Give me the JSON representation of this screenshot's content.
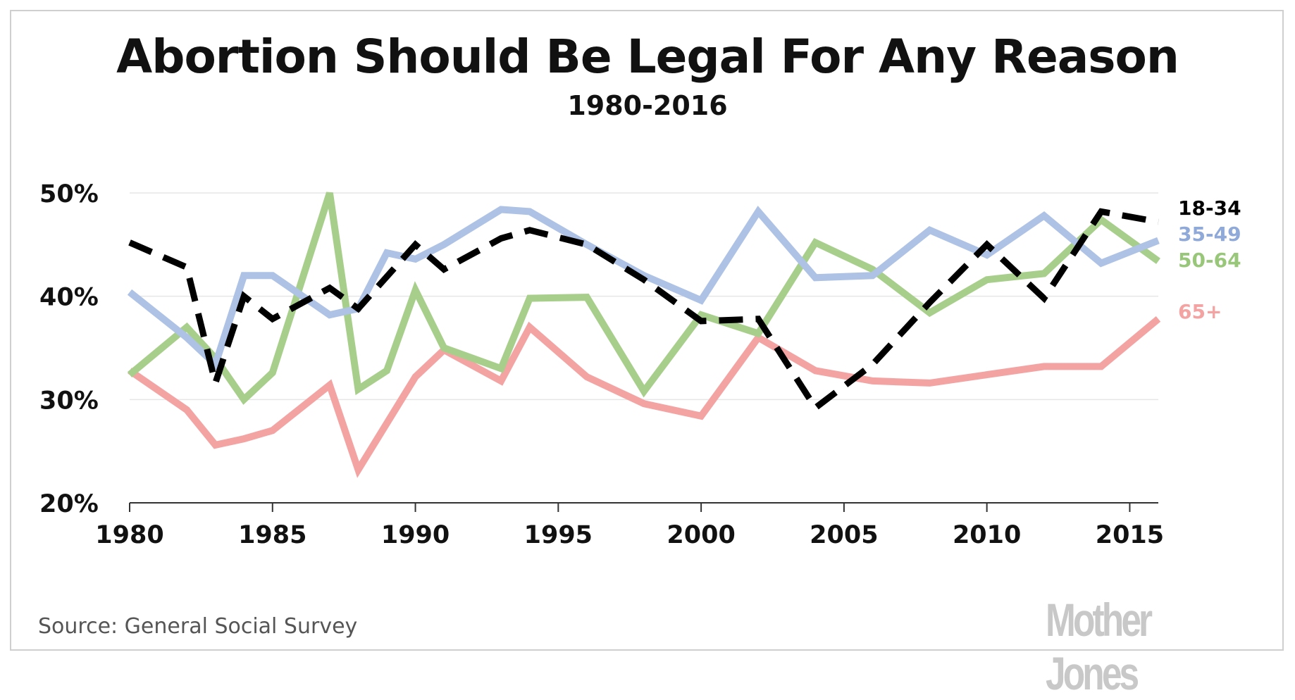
{
  "title": "Abortion Should Be Legal For Any Reason",
  "subtitle": "1980-2016",
  "source": "Source: General Social Survey",
  "logo": "Mother Jones",
  "chart_data": {
    "type": "line",
    "title": "Abortion Should Be Legal For Any Reason",
    "subtitle": "1980-2016",
    "xlabel": "",
    "ylabel": "",
    "xlim": [
      1980,
      2016
    ],
    "ylim": [
      20,
      50
    ],
    "grid": true,
    "legend_position": "right",
    "x_ticks": [
      {
        "value": 1980,
        "label": "1980"
      },
      {
        "value": 1985,
        "label": "1985"
      },
      {
        "value": 1990,
        "label": "1990"
      },
      {
        "value": 1995,
        "label": "1995"
      },
      {
        "value": 2000,
        "label": "2000"
      },
      {
        "value": 2005,
        "label": "2005"
      },
      {
        "value": 2010,
        "label": "2010"
      },
      {
        "value": 2015,
        "label": "2015"
      }
    ],
    "y_ticks": [
      {
        "value": 20,
        "label": "20%"
      },
      {
        "value": 30,
        "label": "30%"
      },
      {
        "value": 40,
        "label": "40%"
      },
      {
        "value": 50,
        "label": "50%"
      }
    ],
    "series": [
      {
        "name": "65+",
        "color": "#f4a3a3",
        "dash": false,
        "points": [
          [
            1980,
            32.8
          ],
          [
            1982,
            29.0
          ],
          [
            1983,
            25.6
          ],
          [
            1984,
            26.2
          ],
          [
            1985,
            27.0
          ],
          [
            1987,
            31.4
          ],
          [
            1988,
            23.2
          ],
          [
            1990,
            32.2
          ],
          [
            1991,
            34.8
          ],
          [
            1993,
            31.8
          ],
          [
            1994,
            37.0
          ],
          [
            1996,
            32.2
          ],
          [
            1998,
            29.6
          ],
          [
            2000,
            28.4
          ],
          [
            2002,
            36.0
          ],
          [
            2004,
            32.8
          ],
          [
            2006,
            31.8
          ],
          [
            2008,
            31.6
          ],
          [
            2010,
            32.4
          ],
          [
            2012,
            33.2
          ],
          [
            2014,
            33.2
          ],
          [
            2016,
            37.8
          ]
        ]
      },
      {
        "name": "50-64",
        "color": "#a7cf8b",
        "dash": false,
        "points": [
          [
            1980,
            32.4
          ],
          [
            1982,
            37.0
          ],
          [
            1983,
            34.0
          ],
          [
            1984,
            30.0
          ],
          [
            1985,
            32.6
          ],
          [
            1987,
            50.0
          ],
          [
            1988,
            31.0
          ],
          [
            1989,
            32.8
          ],
          [
            1990,
            40.6
          ],
          [
            1991,
            35.0
          ],
          [
            1993,
            33.0
          ],
          [
            1994,
            39.8
          ],
          [
            1996,
            39.9
          ],
          [
            1998,
            30.8
          ],
          [
            2000,
            38.2
          ],
          [
            2002,
            36.4
          ],
          [
            2004,
            45.2
          ],
          [
            2006,
            42.6
          ],
          [
            2008,
            38.4
          ],
          [
            2010,
            41.6
          ],
          [
            2012,
            42.2
          ],
          [
            2014,
            47.4
          ],
          [
            2016,
            43.4
          ]
        ]
      },
      {
        "name": "35-49",
        "color": "#adc2e5",
        "dash": false,
        "points": [
          [
            1980,
            40.4
          ],
          [
            1982,
            36.0
          ],
          [
            1983,
            33.4
          ],
          [
            1984,
            42.0
          ],
          [
            1985,
            42.0
          ],
          [
            1987,
            38.2
          ],
          [
            1988,
            38.8
          ],
          [
            1989,
            44.2
          ],
          [
            1990,
            43.6
          ],
          [
            1991,
            45.0
          ],
          [
            1993,
            48.4
          ],
          [
            1994,
            48.2
          ],
          [
            1996,
            45.0
          ],
          [
            1998,
            42.0
          ],
          [
            2000,
            39.6
          ],
          [
            2002,
            48.2
          ],
          [
            2004,
            41.8
          ],
          [
            2006,
            42.0
          ],
          [
            2008,
            46.4
          ],
          [
            2010,
            44.0
          ],
          [
            2012,
            47.8
          ],
          [
            2014,
            43.2
          ],
          [
            2016,
            45.4
          ]
        ]
      },
      {
        "name": "18-34",
        "color": "#000000",
        "dash": true,
        "points": [
          [
            1980,
            45.2
          ],
          [
            1982,
            42.8
          ],
          [
            1983,
            31.6
          ],
          [
            1984,
            40.0
          ],
          [
            1985,
            37.8
          ],
          [
            1987,
            40.8
          ],
          [
            1988,
            38.8
          ],
          [
            1990,
            45.0
          ],
          [
            1991,
            42.6
          ],
          [
            1993,
            45.6
          ],
          [
            1994,
            46.4
          ],
          [
            1996,
            45.0
          ],
          [
            1998,
            41.6
          ],
          [
            2000,
            37.6
          ],
          [
            2002,
            37.8
          ],
          [
            2004,
            29.2
          ],
          [
            2006,
            33.4
          ],
          [
            2008,
            39.4
          ],
          [
            2010,
            45.0
          ],
          [
            2012,
            39.8
          ],
          [
            2014,
            48.2
          ],
          [
            2016,
            47.2
          ]
        ]
      }
    ],
    "legend": [
      {
        "name": "18-34",
        "color": "#000000"
      },
      {
        "name": "35-49",
        "color": "#8fa9d8"
      },
      {
        "name": "50-64",
        "color": "#99c77a"
      },
      {
        "name": "65+",
        "color": "#f4a3a3"
      }
    ]
  }
}
